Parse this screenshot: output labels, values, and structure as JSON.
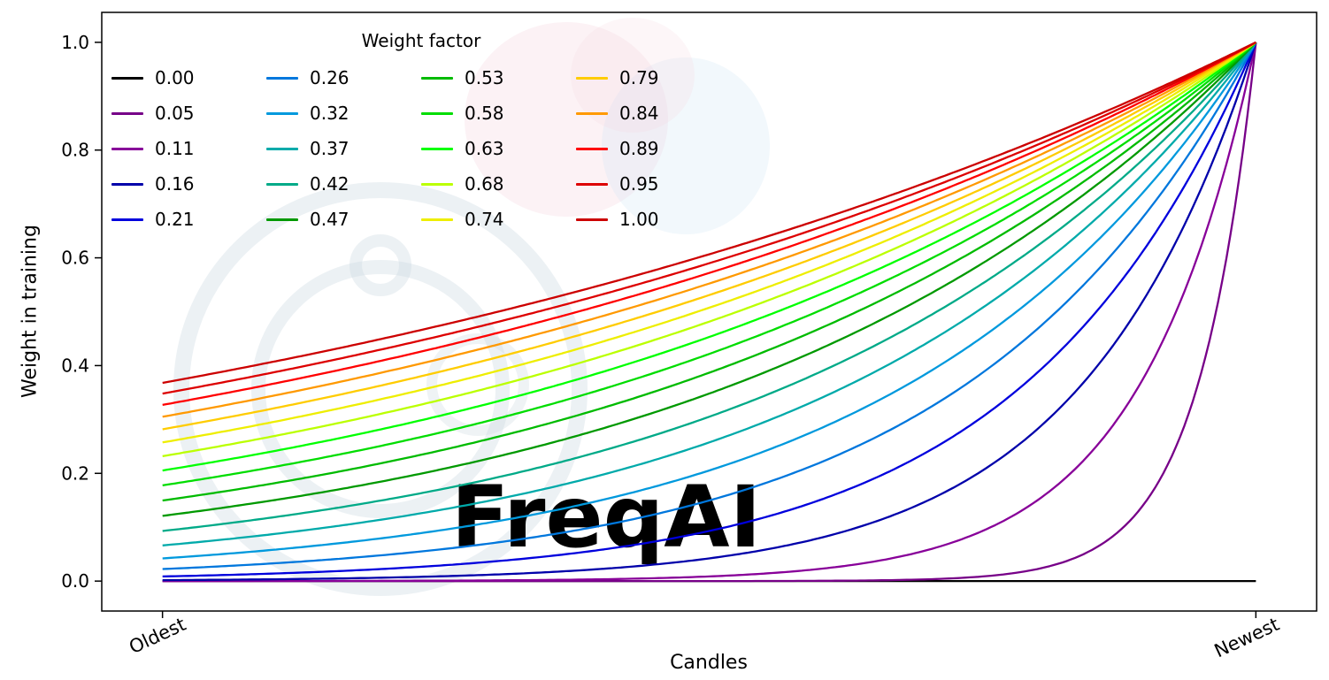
{
  "watermark": {
    "text": "FreqAI"
  },
  "chart_data": {
    "type": "line",
    "title": "",
    "xlabel": "Candles",
    "ylabel": "Weight in training",
    "x_tick_labels": [
      "Oldest",
      "Newest"
    ],
    "y_ticks": [
      0.0,
      0.2,
      0.4,
      0.6,
      0.8,
      1.0
    ],
    "y_tick_labels": [
      "0.0",
      "0.2",
      "0.4",
      "0.6",
      "0.8",
      "1.0"
    ],
    "ylim": [
      -0.05,
      1.05
    ],
    "xlim": [
      0,
      1
    ],
    "grid": false,
    "legend_title": "Weight factor",
    "legend_position": "upper-left",
    "legend_columns": 4,
    "legend_order": "column-major",
    "formula": "weight(x) = exp(-(1 - x) / factor) for x in [0,1]; factor = 0.00 gives weight 0 everywhere except the newest candle",
    "oldest_weight_for_factor_1": 0.37,
    "newest_weight_all_series": 1.0,
    "series": [
      {
        "label": "0.00",
        "factor": 0.0,
        "color": "#000000"
      },
      {
        "label": "0.05",
        "factor": 0.0526,
        "color": "#770088"
      },
      {
        "label": "0.11",
        "factor": 0.1053,
        "color": "#880099"
      },
      {
        "label": "0.16",
        "factor": 0.1579,
        "color": "#0000aa"
      },
      {
        "label": "0.21",
        "factor": 0.2105,
        "color": "#0000dd"
      },
      {
        "label": "0.26",
        "factor": 0.2632,
        "color": "#0077dd"
      },
      {
        "label": "0.32",
        "factor": 0.3158,
        "color": "#0099dd"
      },
      {
        "label": "0.37",
        "factor": 0.3684,
        "color": "#00aaaa"
      },
      {
        "label": "0.42",
        "factor": 0.4211,
        "color": "#00aa88"
      },
      {
        "label": "0.47",
        "factor": 0.4737,
        "color": "#009900"
      },
      {
        "label": "0.53",
        "factor": 0.5263,
        "color": "#00bb00"
      },
      {
        "label": "0.58",
        "factor": 0.5789,
        "color": "#00dd00"
      },
      {
        "label": "0.63",
        "factor": 0.6316,
        "color": "#00ff00"
      },
      {
        "label": "0.68",
        "factor": 0.6842,
        "color": "#bbff00"
      },
      {
        "label": "0.74",
        "factor": 0.7368,
        "color": "#eeee00"
      },
      {
        "label": "0.79",
        "factor": 0.7895,
        "color": "#ffcc00"
      },
      {
        "label": "0.84",
        "factor": 0.8421,
        "color": "#ff9900"
      },
      {
        "label": "0.89",
        "factor": 0.8947,
        "color": "#ff0000"
      },
      {
        "label": "0.95",
        "factor": 0.9474,
        "color": "#dd0000"
      },
      {
        "label": "1.00",
        "factor": 1.0,
        "color": "#cc0000"
      }
    ]
  }
}
